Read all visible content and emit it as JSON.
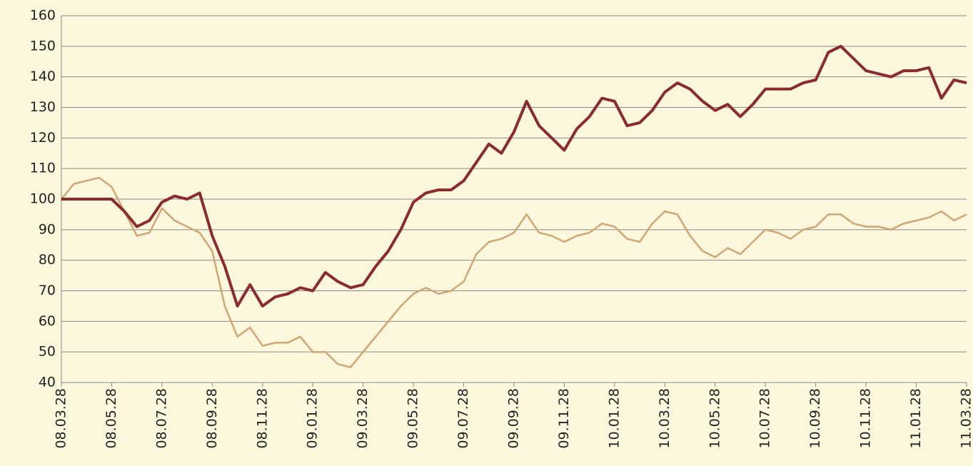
{
  "chart_data": {
    "type": "line",
    "categories": [
      "08.03.28",
      null,
      null,
      null,
      "08.05.28",
      null,
      null,
      null,
      "08.07.28",
      null,
      null,
      null,
      "08.09.28",
      null,
      null,
      null,
      "08.11.28",
      null,
      null,
      null,
      "09.01.28",
      null,
      null,
      null,
      "09.03.28",
      null,
      null,
      null,
      "09.05.28",
      null,
      null,
      null,
      "09.07.28",
      null,
      null,
      null,
      "09.09.28",
      null,
      null,
      null,
      "09.11.28",
      null,
      null,
      null,
      "10.01.28",
      null,
      null,
      null,
      "10.03.28",
      null,
      null,
      null,
      "10.05.28",
      null,
      null,
      null,
      "10.07.28",
      null,
      null,
      null,
      "10.09.28",
      null,
      null,
      null,
      "10.11.28",
      null,
      null,
      null,
      "11.01.28",
      null,
      null,
      null,
      "11.03.28"
    ],
    "series": [
      {
        "color": "#d2a673",
        "values": [
          100,
          105,
          106,
          107,
          104,
          96,
          88,
          89,
          97,
          93,
          91,
          89,
          83,
          65,
          55,
          58,
          52,
          53,
          53,
          55,
          50,
          50,
          46,
          45,
          50,
          55,
          60,
          65,
          69,
          71,
          69,
          70,
          73,
          82,
          86,
          87,
          89,
          95,
          89,
          88,
          86,
          88,
          89,
          92,
          91,
          87,
          86,
          92,
          96,
          95,
          88,
          83,
          81,
          84,
          82,
          86,
          90,
          89,
          87,
          90,
          91,
          95,
          95,
          92,
          91,
          91,
          90,
          92,
          93,
          94,
          96,
          93,
          95
        ]
      },
      {
        "color": "#8b2b2e",
        "values": [
          100,
          100,
          100,
          100,
          100,
          96,
          91,
          93,
          99,
          101,
          100,
          102,
          88,
          78,
          65,
          72,
          65,
          68,
          69,
          71,
          70,
          76,
          73,
          71,
          72,
          78,
          83,
          90,
          99,
          102,
          103,
          103,
          106,
          112,
          118,
          115,
          122,
          132,
          124,
          120,
          116,
          123,
          127,
          133,
          132,
          124,
          125,
          129,
          135,
          138,
          136,
          132,
          129,
          131,
          127,
          131,
          136,
          136,
          136,
          138,
          139,
          148,
          150,
          146,
          142,
          141,
          140,
          142,
          142,
          143,
          133,
          139,
          138
        ]
      }
    ],
    "ylim": [
      40,
      160
    ],
    "yticks": [
      40,
      50,
      60,
      70,
      80,
      90,
      100,
      110,
      120,
      130,
      140,
      150,
      160
    ],
    "grid": true
  }
}
